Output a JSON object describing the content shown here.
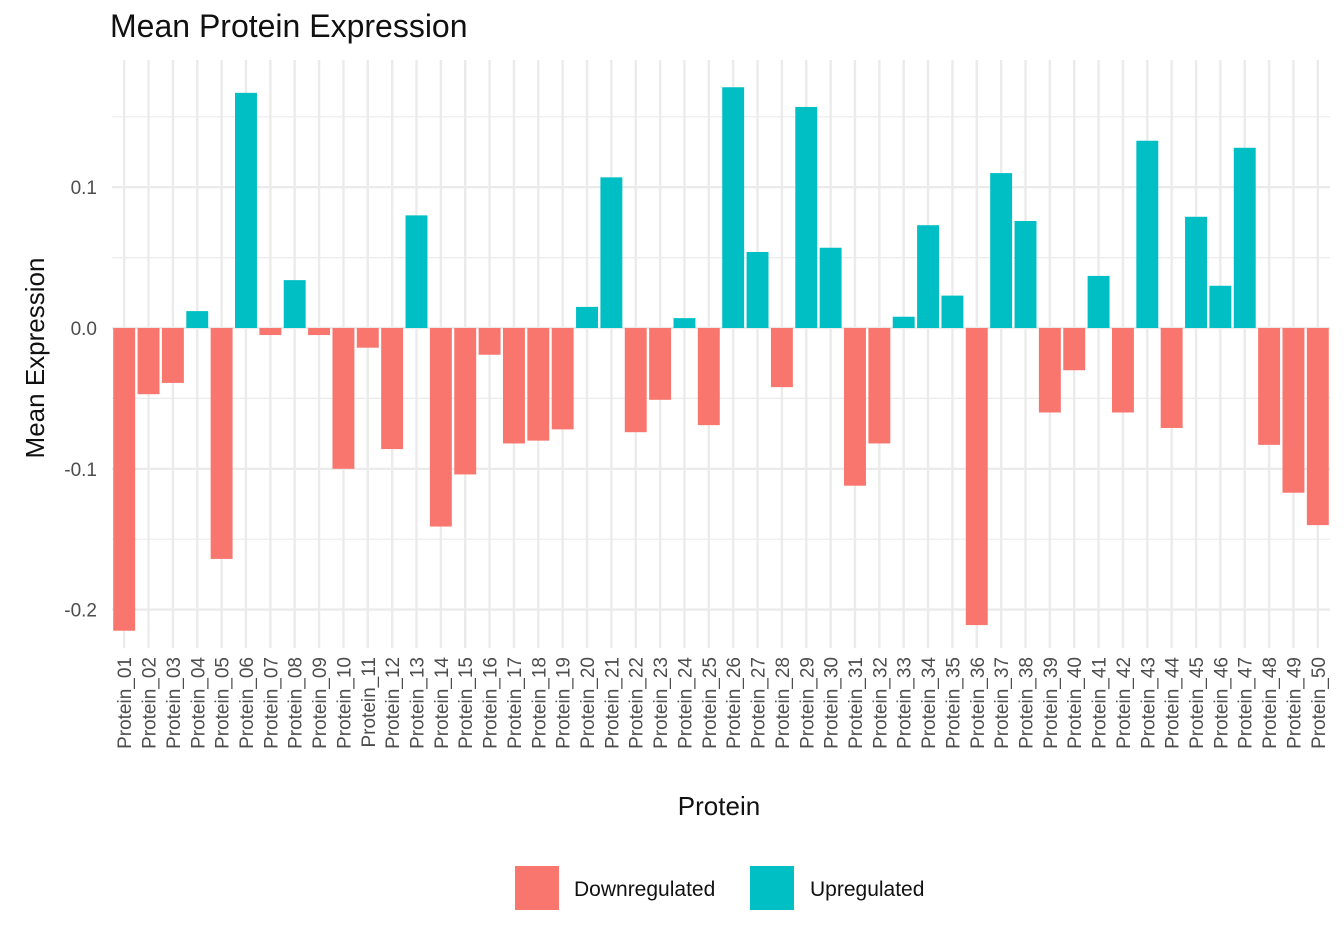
{
  "chart_data": {
    "type": "bar",
    "title": "Mean Protein Expression",
    "xlabel": "Protein",
    "ylabel": "Mean Expression",
    "ylim": [
      -0.23,
      0.19
    ],
    "yticks": [
      -0.2,
      -0.1,
      0.0,
      0.1
    ],
    "ytick_labels": [
      "-0.2",
      "-0.1",
      "0.0",
      "0.1"
    ],
    "grid": true,
    "legend_position": "bottom",
    "colors": {
      "Downregulated": "#F8766D",
      "Upregulated": "#00BFC4"
    },
    "legend": [
      "Downregulated",
      "Upregulated"
    ],
    "categories": [
      "Protein_01",
      "Protein_02",
      "Protein_03",
      "Protein_04",
      "Protein_05",
      "Protein_06",
      "Protein_07",
      "Protein_08",
      "Protein_09",
      "Protein_10",
      "Protein_11",
      "Protein_12",
      "Protein_13",
      "Protein_14",
      "Protein_15",
      "Protein_16",
      "Protein_17",
      "Protein_18",
      "Protein_19",
      "Protein_20",
      "Protein_21",
      "Protein_22",
      "Protein_23",
      "Protein_24",
      "Protein_25",
      "Protein_26",
      "Protein_27",
      "Protein_28",
      "Protein_29",
      "Protein_30",
      "Protein_31",
      "Protein_32",
      "Protein_33",
      "Protein_34",
      "Protein_35",
      "Protein_36",
      "Protein_37",
      "Protein_38",
      "Protein_39",
      "Protein_40",
      "Protein_41",
      "Protein_42",
      "Protein_43",
      "Protein_44",
      "Protein_45",
      "Protein_46",
      "Protein_47",
      "Protein_48",
      "Protein_49",
      "Protein_50"
    ],
    "values": [
      -0.215,
      -0.047,
      -0.039,
      0.012,
      -0.164,
      0.167,
      -0.005,
      0.034,
      -0.005,
      -0.1,
      -0.014,
      -0.086,
      0.08,
      -0.141,
      -0.104,
      -0.019,
      -0.082,
      -0.08,
      -0.072,
      0.015,
      0.107,
      -0.074,
      -0.051,
      0.007,
      -0.069,
      0.171,
      0.054,
      -0.042,
      0.157,
      0.057,
      -0.112,
      -0.082,
      0.008,
      0.073,
      0.023,
      -0.211,
      0.11,
      0.076,
      -0.06,
      -0.03,
      0.037,
      -0.06,
      0.133,
      -0.071,
      0.079,
      0.03,
      0.128,
      -0.083,
      -0.117,
      -0.14
    ],
    "groups": [
      "Downregulated",
      "Downregulated",
      "Downregulated",
      "Upregulated",
      "Downregulated",
      "Upregulated",
      "Downregulated",
      "Upregulated",
      "Downregulated",
      "Downregulated",
      "Downregulated",
      "Downregulated",
      "Upregulated",
      "Downregulated",
      "Downregulated",
      "Downregulated",
      "Downregulated",
      "Downregulated",
      "Downregulated",
      "Upregulated",
      "Upregulated",
      "Downregulated",
      "Downregulated",
      "Upregulated",
      "Downregulated",
      "Upregulated",
      "Upregulated",
      "Downregulated",
      "Upregulated",
      "Upregulated",
      "Downregulated",
      "Downregulated",
      "Upregulated",
      "Upregulated",
      "Upregulated",
      "Downregulated",
      "Upregulated",
      "Upregulated",
      "Downregulated",
      "Downregulated",
      "Upregulated",
      "Downregulated",
      "Upregulated",
      "Downregulated",
      "Upregulated",
      "Upregulated",
      "Upregulated",
      "Downregulated",
      "Downregulated",
      "Downregulated"
    ]
  }
}
